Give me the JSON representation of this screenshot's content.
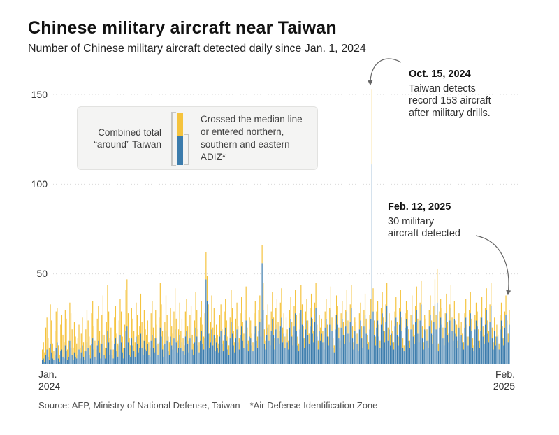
{
  "header": {
    "title": "Chinese military aircraft near Taiwan",
    "subtitle": "Number of Chinese military aircraft detected daily since Jan. 1, 2024"
  },
  "legend": {
    "combined_line1": "Combined total",
    "combined_line2": "“around” Taiwan",
    "crossed_text": "Crossed the median line or entered northern, southern and eastern ADIZ*"
  },
  "annotations": {
    "oct": {
      "date": "Oct. 15, 2024",
      "line1": "Taiwan detects",
      "line2": "record 153 aircraft",
      "line3": "after military drills."
    },
    "feb": {
      "date": "Feb. 12, 2025",
      "line1": "30 military",
      "line2": "aircraft detected"
    }
  },
  "axis": {
    "y_ticks": [
      "150",
      "100",
      "50"
    ],
    "x_start_line1": "Jan.",
    "x_start_line2": "2024",
    "x_end_line1": "Feb.",
    "x_end_line2": "2025"
  },
  "footer": {
    "source": "Source: AFP, Ministry of National Defense, Taiwan",
    "note": "*Air Defense Identification Zone"
  },
  "colors": {
    "total_yellow": "#f5c33d",
    "crossed_blue": "#3c7cac",
    "grid": "#d9d9d9",
    "baseline": "#c9c9c9",
    "arrow": "#666666"
  },
  "chart_data": {
    "type": "bar",
    "stacked": true,
    "title": "Chinese military aircraft near Taiwan",
    "x_range": "Daily values, Jan. 1, 2024 to Feb. 12, 2025",
    "ylim": [
      0,
      160
    ],
    "yticks": [
      50,
      100,
      150
    ],
    "grid": "dotted horizontal lines",
    "legend_position": "boxed legend, upper left of plot",
    "series": [
      {
        "name": "Combined total “around” Taiwan",
        "color": "#f5c33d",
        "role": "total"
      },
      {
        "name": "Crossed the median line or entered northern, southern and eastern ADIZ*",
        "color": "#3c7cac",
        "role": "crossed"
      }
    ],
    "highlights": [
      {
        "date": "Oct. 15, 2024",
        "total": 153,
        "crossed": 111,
        "note": "Taiwan detects record 153 aircraft after military drills."
      },
      {
        "date": "Feb. 12, 2025",
        "total": 30,
        "crossed": 22,
        "note": "30 military aircraft detected"
      }
    ],
    "points_format": "[combined_total, crossed_median_or_entered_ADIZ] per day (estimated from pixels)",
    "points": [
      [
        8,
        2
      ],
      [
        12,
        3
      ],
      [
        6,
        1
      ],
      [
        20,
        5
      ],
      [
        26,
        8
      ],
      [
        14,
        4
      ],
      [
        9,
        2
      ],
      [
        33,
        11
      ],
      [
        24,
        6
      ],
      [
        11,
        3
      ],
      [
        7,
        2
      ],
      [
        18,
        5
      ],
      [
        29,
        9
      ],
      [
        31,
        12
      ],
      [
        10,
        3
      ],
      [
        5,
        1
      ],
      [
        22,
        7
      ],
      [
        27,
        8
      ],
      [
        16,
        4
      ],
      [
        12,
        3
      ],
      [
        30,
        10
      ],
      [
        25,
        7
      ],
      [
        8,
        2
      ],
      [
        13,
        4
      ],
      [
        34,
        13
      ],
      [
        28,
        9
      ],
      [
        19,
        5
      ],
      [
        9,
        2
      ],
      [
        23,
        6
      ],
      [
        15,
        4
      ],
      [
        11,
        3
      ],
      [
        14,
        5
      ],
      [
        22,
        8
      ],
      [
        9,
        3
      ],
      [
        17,
        6
      ],
      [
        26,
        10
      ],
      [
        12,
        4
      ],
      [
        7,
        2
      ],
      [
        19,
        7
      ],
      [
        30,
        12
      ],
      [
        24,
        9
      ],
      [
        15,
        5
      ],
      [
        10,
        3
      ],
      [
        28,
        11
      ],
      [
        35,
        14
      ],
      [
        21,
        8
      ],
      [
        13,
        4
      ],
      [
        8,
        2
      ],
      [
        25,
        10
      ],
      [
        32,
        13
      ],
      [
        18,
        6
      ],
      [
        11,
        3
      ],
      [
        27,
        11
      ],
      [
        38,
        16
      ],
      [
        16,
        5
      ],
      [
        9,
        3
      ],
      [
        23,
        9
      ],
      [
        44,
        18
      ],
      [
        29,
        12
      ],
      [
        14,
        5
      ],
      [
        20,
        8
      ],
      [
        13,
        5
      ],
      [
        8,
        3
      ],
      [
        26,
        11
      ],
      [
        32,
        14
      ],
      [
        17,
        7
      ],
      [
        11,
        4
      ],
      [
        24,
        10
      ],
      [
        36,
        16
      ],
      [
        29,
        12
      ],
      [
        15,
        6
      ],
      [
        9,
        3
      ],
      [
        22,
        9
      ],
      [
        41,
        18
      ],
      [
        47,
        21
      ],
      [
        28,
        12
      ],
      [
        14,
        5
      ],
      [
        10,
        4
      ],
      [
        31,
        14
      ],
      [
        25,
        10
      ],
      [
        18,
        7
      ],
      [
        12,
        4
      ],
      [
        34,
        15
      ],
      [
        27,
        11
      ],
      [
        16,
        6
      ],
      [
        21,
        9
      ],
      [
        39,
        17
      ],
      [
        23,
        9
      ],
      [
        13,
        5
      ],
      [
        30,
        13
      ],
      [
        19,
        8
      ],
      [
        16,
        7
      ],
      [
        24,
        11
      ],
      [
        12,
        5
      ],
      [
        9,
        4
      ],
      [
        28,
        13
      ],
      [
        35,
        16
      ],
      [
        20,
        9
      ],
      [
        14,
        6
      ],
      [
        30,
        14
      ],
      [
        22,
        10
      ],
      [
        11,
        5
      ],
      [
        26,
        12
      ],
      [
        45,
        20
      ],
      [
        33,
        15
      ],
      [
        18,
        8
      ],
      [
        10,
        4
      ],
      [
        23,
        11
      ],
      [
        38,
        18
      ],
      [
        27,
        13
      ],
      [
        15,
        7
      ],
      [
        12,
        5
      ],
      [
        31,
        15
      ],
      [
        21,
        10
      ],
      [
        17,
        8
      ],
      [
        29,
        14
      ],
      [
        42,
        19
      ],
      [
        25,
        12
      ],
      [
        13,
        6
      ],
      [
        19,
        9
      ],
      [
        34,
        16
      ],
      [
        18,
        9
      ],
      [
        25,
        12
      ],
      [
        14,
        7
      ],
      [
        10,
        5
      ],
      [
        29,
        15
      ],
      [
        36,
        18
      ],
      [
        21,
        11
      ],
      [
        13,
        6
      ],
      [
        27,
        14
      ],
      [
        32,
        16
      ],
      [
        16,
        8
      ],
      [
        11,
        5
      ],
      [
        24,
        12
      ],
      [
        40,
        20
      ],
      [
        30,
        15
      ],
      [
        19,
        10
      ],
      [
        12,
        6
      ],
      [
        26,
        13
      ],
      [
        35,
        18
      ],
      [
        22,
        11
      ],
      [
        15,
        8
      ],
      [
        28,
        14
      ],
      [
        62,
        47
      ],
      [
        49,
        35
      ],
      [
        33,
        17
      ],
      [
        17,
        9
      ],
      [
        23,
        12
      ],
      [
        38,
        19
      ],
      [
        20,
        10
      ],
      [
        31,
        16
      ],
      [
        14,
        7
      ],
      [
        22,
        12
      ],
      [
        16,
        9
      ],
      [
        11,
        6
      ],
      [
        27,
        15
      ],
      [
        33,
        18
      ],
      [
        19,
        11
      ],
      [
        13,
        7
      ],
      [
        29,
        16
      ],
      [
        36,
        20
      ],
      [
        24,
        13
      ],
      [
        15,
        8
      ],
      [
        10,
        5
      ],
      [
        26,
        14
      ],
      [
        41,
        23
      ],
      [
        31,
        17
      ],
      [
        18,
        10
      ],
      [
        12,
        6
      ],
      [
        25,
        14
      ],
      [
        34,
        19
      ],
      [
        21,
        12
      ],
      [
        14,
        8
      ],
      [
        28,
        16
      ],
      [
        37,
        21
      ],
      [
        23,
        13
      ],
      [
        17,
        9
      ],
      [
        30,
        17
      ],
      [
        43,
        24
      ],
      [
        20,
        11
      ],
      [
        13,
        7
      ],
      [
        26,
        15
      ],
      [
        24,
        14
      ],
      [
        17,
        10
      ],
      [
        12,
        7
      ],
      [
        28,
        17
      ],
      [
        35,
        21
      ],
      [
        21,
        13
      ],
      [
        15,
        9
      ],
      [
        30,
        18
      ],
      [
        38,
        23
      ],
      [
        25,
        15
      ],
      [
        66,
        56
      ],
      [
        45,
        30
      ],
      [
        19,
        11
      ],
      [
        13,
        8
      ],
      [
        27,
        16
      ],
      [
        33,
        20
      ],
      [
        22,
        13
      ],
      [
        16,
        10
      ],
      [
        29,
        18
      ],
      [
        40,
        25
      ],
      [
        26,
        16
      ],
      [
        14,
        8
      ],
      [
        31,
        19
      ],
      [
        36,
        22
      ],
      [
        23,
        14
      ],
      [
        18,
        11
      ],
      [
        34,
        21
      ],
      [
        42,
        26
      ],
      [
        20,
        12
      ],
      [
        28,
        17
      ],
      [
        15,
        9
      ],
      [
        26,
        17
      ],
      [
        19,
        12
      ],
      [
        13,
        8
      ],
      [
        30,
        20
      ],
      [
        37,
        25
      ],
      [
        23,
        15
      ],
      [
        16,
        10
      ],
      [
        32,
        21
      ],
      [
        41,
        28
      ],
      [
        27,
        18
      ],
      [
        15,
        10
      ],
      [
        11,
        7
      ],
      [
        28,
        19
      ],
      [
        44,
        30
      ],
      [
        33,
        22
      ],
      [
        21,
        14
      ],
      [
        14,
        9
      ],
      [
        29,
        19
      ],
      [
        36,
        24
      ],
      [
        24,
        16
      ],
      [
        17,
        11
      ],
      [
        31,
        21
      ],
      [
        39,
        26
      ],
      [
        25,
        17
      ],
      [
        18,
        12
      ],
      [
        34,
        23
      ],
      [
        45,
        31
      ],
      [
        22,
        15
      ],
      [
        13,
        8
      ],
      [
        27,
        18
      ],
      [
        20,
        13
      ],
      [
        25,
        17
      ],
      [
        18,
        12
      ],
      [
        12,
        8
      ],
      [
        29,
        20
      ],
      [
        36,
        25
      ],
      [
        22,
        15
      ],
      [
        15,
        10
      ],
      [
        31,
        22
      ],
      [
        43,
        30
      ],
      [
        26,
        18
      ],
      [
        14,
        9
      ],
      [
        10,
        6
      ],
      [
        27,
        19
      ],
      [
        38,
        27
      ],
      [
        32,
        22
      ],
      [
        20,
        14
      ],
      [
        13,
        9
      ],
      [
        28,
        20
      ],
      [
        35,
        25
      ],
      [
        23,
        16
      ],
      [
        16,
        11
      ],
      [
        30,
        21
      ],
      [
        41,
        29
      ],
      [
        24,
        17
      ],
      [
        17,
        12
      ],
      [
        33,
        23
      ],
      [
        44,
        31
      ],
      [
        21,
        14
      ],
      [
        12,
        8
      ],
      [
        26,
        18
      ],
      [
        23,
        16
      ],
      [
        17,
        11
      ],
      [
        11,
        7
      ],
      [
        28,
        19
      ],
      [
        34,
        24
      ],
      [
        21,
        14
      ],
      [
        14,
        9
      ],
      [
        30,
        21
      ],
      [
        39,
        27
      ],
      [
        25,
        17
      ],
      [
        16,
        11
      ],
      [
        12,
        8
      ],
      [
        27,
        19
      ],
      [
        36,
        25
      ],
      [
        153,
        111
      ],
      [
        42,
        29
      ],
      [
        24,
        16
      ],
      [
        15,
        10
      ],
      [
        29,
        20
      ],
      [
        35,
        24
      ],
      [
        22,
        15
      ],
      [
        13,
        9
      ],
      [
        31,
        22
      ],
      [
        40,
        28
      ],
      [
        26,
        18
      ],
      [
        18,
        12
      ],
      [
        33,
        23
      ],
      [
        45,
        32
      ],
      [
        20,
        13
      ],
      [
        28,
        19
      ],
      [
        16,
        10
      ],
      [
        24,
        17
      ],
      [
        18,
        12
      ],
      [
        12,
        8
      ],
      [
        29,
        21
      ],
      [
        37,
        26
      ],
      [
        23,
        16
      ],
      [
        15,
        10
      ],
      [
        31,
        22
      ],
      [
        41,
        29
      ],
      [
        26,
        18
      ],
      [
        14,
        9
      ],
      [
        10,
        7
      ],
      [
        28,
        20
      ],
      [
        35,
        25
      ],
      [
        30,
        21
      ],
      [
        19,
        13
      ],
      [
        13,
        9
      ],
      [
        27,
        19
      ],
      [
        38,
        27
      ],
      [
        22,
        15
      ],
      [
        16,
        11
      ],
      [
        32,
        23
      ],
      [
        43,
        30
      ],
      [
        25,
        17
      ],
      [
        17,
        12
      ],
      [
        34,
        24
      ],
      [
        46,
        33
      ],
      [
        21,
        14
      ],
      [
        12,
        8
      ],
      [
        27,
        19
      ],
      [
        25,
        18
      ],
      [
        19,
        13
      ],
      [
        13,
        9
      ],
      [
        30,
        21
      ],
      [
        38,
        27
      ],
      [
        24,
        17
      ],
      [
        16,
        11
      ],
      [
        32,
        23
      ],
      [
        47,
        33
      ],
      [
        27,
        19
      ],
      [
        53,
        34
      ],
      [
        11,
        7
      ],
      [
        29,
        20
      ],
      [
        36,
        26
      ],
      [
        31,
        22
      ],
      [
        20,
        14
      ],
      [
        14,
        10
      ],
      [
        28,
        20
      ],
      [
        39,
        28
      ],
      [
        23,
        16
      ],
      [
        17,
        12
      ],
      [
        33,
        24
      ],
      [
        44,
        31
      ],
      [
        26,
        18
      ],
      [
        18,
        13
      ],
      [
        35,
        25
      ],
      [
        24,
        17
      ],
      [
        22,
        15
      ],
      [
        13,
        9
      ],
      [
        28,
        20
      ],
      [
        21,
        15
      ],
      [
        23,
        16
      ],
      [
        17,
        12
      ],
      [
        12,
        8
      ],
      [
        28,
        20
      ],
      [
        36,
        26
      ],
      [
        22,
        15
      ],
      [
        15,
        10
      ],
      [
        30,
        21
      ],
      [
        40,
        28
      ],
      [
        25,
        18
      ],
      [
        14,
        9
      ],
      [
        10,
        7
      ],
      [
        27,
        19
      ],
      [
        34,
        24
      ],
      [
        29,
        21
      ],
      [
        19,
        13
      ],
      [
        13,
        9
      ],
      [
        26,
        18
      ],
      [
        37,
        26
      ],
      [
        21,
        15
      ],
      [
        16,
        11
      ],
      [
        31,
        22
      ],
      [
        42,
        30
      ],
      [
        24,
        17
      ],
      [
        18,
        12
      ],
      [
        33,
        23
      ],
      [
        45,
        32
      ],
      [
        20,
        14
      ],
      [
        12,
        8
      ],
      [
        26,
        18
      ],
      [
        15,
        10
      ],
      [
        22,
        15
      ],
      [
        16,
        11
      ],
      [
        11,
        8
      ],
      [
        27,
        19
      ],
      [
        34,
        24
      ],
      [
        21,
        14
      ],
      [
        14,
        10
      ],
      [
        29,
        20
      ],
      [
        38,
        27
      ],
      [
        24,
        17
      ],
      [
        17,
        12
      ],
      [
        30,
        22
      ]
    ]
  }
}
